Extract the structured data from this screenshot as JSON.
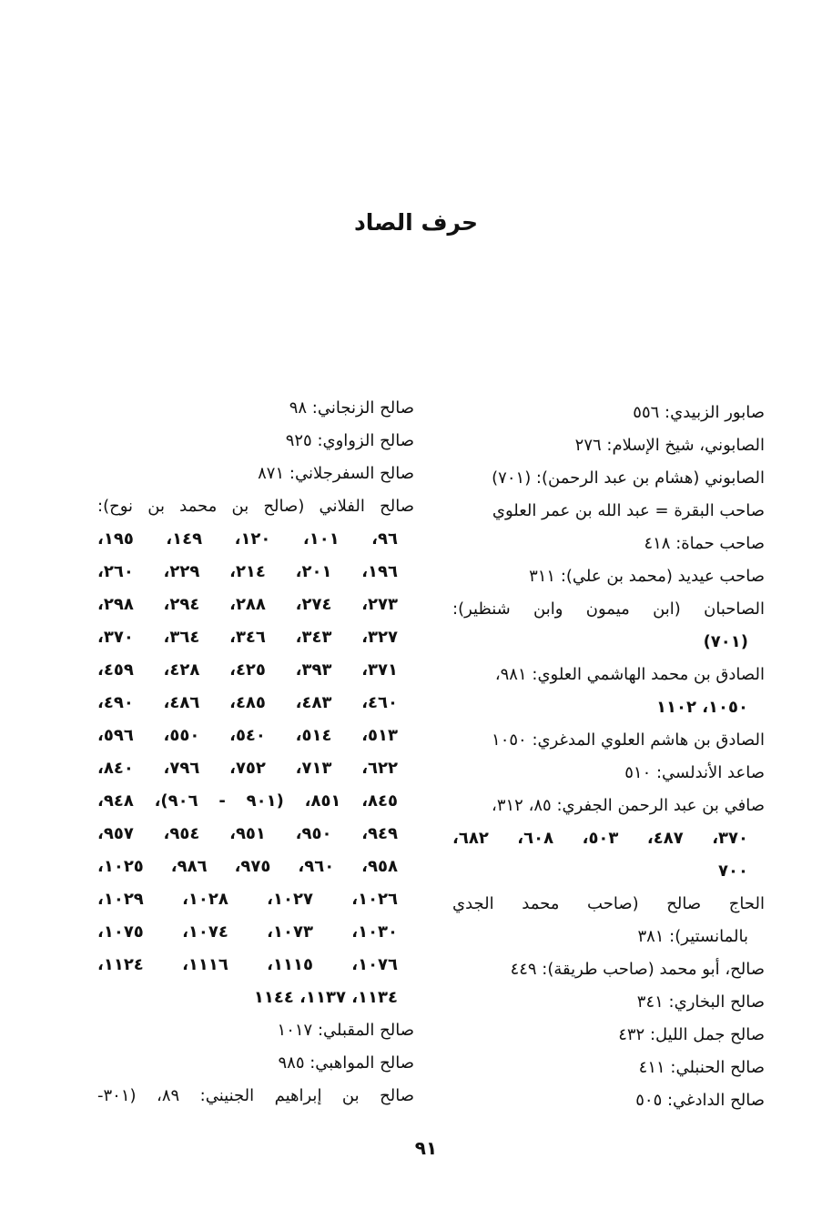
{
  "heading": "حرف الصاد",
  "right_column": [
    {
      "text": "صابور الزبيدي: ٥٥٦",
      "type": "entry"
    },
    {
      "text": "الصابوني، شيخ الإسلام: ٢٧٦",
      "type": "entry"
    },
    {
      "text": "الصابوني (هشام بن عبد الرحمن): (٧٠١)",
      "type": "entry"
    },
    {
      "text": "صاحب البقرة = عبد الله بن عمر العلوي",
      "type": "entry"
    },
    {
      "text": "صاحب حماة: ٤١٨",
      "type": "entry"
    },
    {
      "text": "صاحب عيديد (محمد بن علي): ٣١١",
      "type": "entry"
    },
    {
      "text": "الصاحبان (ابن ميمون وابن شنظير):",
      "type": "entry-justified"
    },
    {
      "text": "(٧٠١)",
      "type": "continuation"
    },
    {
      "text": "الصادق بن محمد الهاشمي العلوي: ٩٨١،",
      "type": "entry"
    },
    {
      "text": "١٠٥٠، ١١٠٢",
      "type": "continuation"
    },
    {
      "text": "الصادق بن هاشم العلوي المدغري: ١٠٥٠",
      "type": "entry"
    },
    {
      "text": "صاعد الأندلسي: ٥١٠",
      "type": "entry"
    },
    {
      "text": "صافي بن عبد الرحمن الجفري: ٨٥، ٣١٢،",
      "type": "entry"
    },
    {
      "text": "٣٧٠، ٤٨٧، ٥٠٣، ٦٠٨، ٦٨٢،",
      "type": "continuation-justified"
    },
    {
      "text": "٧٠٠",
      "type": "continuation"
    },
    {
      "text": "الحاج صالح (صاحب محمد الجدي",
      "type": "entry-justified"
    },
    {
      "text": "بالمانستير): ٣٨١",
      "type": "continuation"
    },
    {
      "text": "صالح، أبو محمد (صاحب طريقة): ٤٤٩",
      "type": "entry"
    },
    {
      "text": "صالح البخاري: ٣٤١",
      "type": "entry"
    },
    {
      "text": "صالح جمل الليل: ٤٣٢",
      "type": "entry"
    },
    {
      "text": "صالح الحنبلي: ٤١١",
      "type": "entry"
    },
    {
      "text": "صالح الدادغي: ٥٠٥",
      "type": "entry"
    }
  ],
  "left_column": [
    {
      "text": "صالح الزنجاني: ٩٨",
      "type": "entry"
    },
    {
      "text": "صالح الزواوي: ٩٢٥",
      "type": "entry"
    },
    {
      "text": "صالح السفرجلاني: ٨٧١",
      "type": "entry"
    },
    {
      "text": "صالح الفلاني (صالح بن محمد بن نوح):",
      "type": "entry-justified"
    },
    {
      "text": "٩٦، ١٠١، ١٢٠، ١٤٩، ١٩٥،",
      "type": "continuation-justified"
    },
    {
      "text": "١٩٦، ٢٠١، ٢١٤، ٢٢٩، ٢٦٠،",
      "type": "continuation-justified"
    },
    {
      "text": "٢٧٣، ٢٧٤، ٢٨٨، ٢٩٤، ٢٩٨،",
      "type": "continuation-justified"
    },
    {
      "text": "٣٢٧، ٣٤٣، ٣٤٦، ٣٦٤، ٣٧٠،",
      "type": "continuation-justified"
    },
    {
      "text": "٣٧١، ٣٩٣، ٤٢٥، ٤٢٨، ٤٥٩،",
      "type": "continuation-justified"
    },
    {
      "text": "٤٦٠، ٤٨٣، ٤٨٥، ٤٨٦، ٤٩٠،",
      "type": "continuation-justified"
    },
    {
      "text": "٥١٣، ٥١٤، ٥٤٠، ٥٥٠، ٥٩٦،",
      "type": "continuation-justified"
    },
    {
      "text": "٦٢٢، ٧١٣، ٧٥٢، ٧٩٦، ٨٤٠،",
      "type": "continuation-justified"
    },
    {
      "text": "٨٤٥، ٨٥١، (٩٠١ - ٩٠٦)، ٩٤٨،",
      "type": "continuation-justified"
    },
    {
      "text": "٩٤٩، ٩٥٠، ٩٥١، ٩٥٤، ٩٥٧،",
      "type": "continuation-justified"
    },
    {
      "text": "٩٥٨، ٩٦٠، ٩٧٥، ٩٨٦، ١٠٢٥،",
      "type": "continuation-justified"
    },
    {
      "text": "١٠٢٦، ١٠٢٧، ١٠٢٨، ١٠٢٩،",
      "type": "continuation-justified"
    },
    {
      "text": "١٠٣٠، ١٠٧٣، ١٠٧٤، ١٠٧٥،",
      "type": "continuation-justified"
    },
    {
      "text": "١٠٧٦، ١١١٥، ١١١٦، ١١٢٤،",
      "type": "continuation-justified"
    },
    {
      "text": "١١٣٤، ١١٣٧، ١١٤٤",
      "type": "continuation"
    },
    {
      "text": "صالح المقبلي: ١٠١٧",
      "type": "entry"
    },
    {
      "text": "صالح المواهبي: ٩٨٥",
      "type": "entry"
    },
    {
      "text": "صالح بن إبراهيم الجنيني: ٨٩، (٣٠١-",
      "type": "entry-justified"
    }
  ],
  "page_number": "٩١"
}
